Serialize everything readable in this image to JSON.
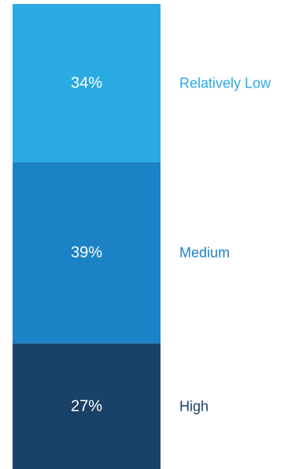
{
  "chart_data": {
    "type": "bar",
    "stacked": true,
    "orientation": "vertical",
    "title": "",
    "xlabel": "",
    "ylabel": "",
    "ylim": [
      0,
      100
    ],
    "grid": false,
    "series": [
      {
        "name": "Relatively Low",
        "value": 34,
        "value_label": "34%",
        "color": "#29ABE2",
        "label_color": "#29ABE2"
      },
      {
        "name": "Medium",
        "value": 39,
        "value_label": "39%",
        "color": "#1B82C6",
        "label_color": "#1B82C6"
      },
      {
        "name": "High",
        "value": 27,
        "value_label": "27%",
        "color": "#1A4168",
        "label_color": "#1A4168"
      }
    ]
  }
}
